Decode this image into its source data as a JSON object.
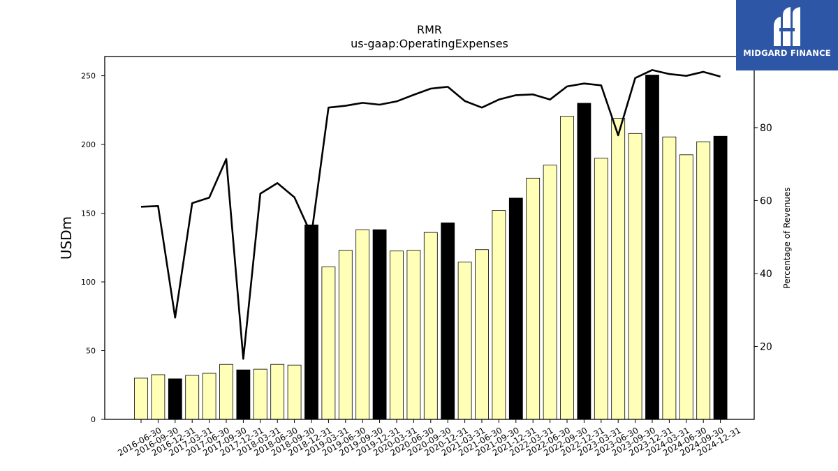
{
  "title": "RMR",
  "subtitle": "us-gaap:OperatingExpenses",
  "brand": {
    "name": "MIDGARD FINANCE",
    "color": "#2d56a6"
  },
  "chart_data": {
    "type": "bar",
    "title": "RMR",
    "subtitle": "us-gaap:OperatingExpenses",
    "ylabel": "USDm",
    "y2label": "Percentage of Revenues",
    "ylim": [
      0,
      264
    ],
    "y2lim": [
      0,
      99.5
    ],
    "yticks": [
      0,
      50,
      100,
      150,
      200,
      250
    ],
    "y2ticks": [
      20,
      40,
      60,
      80
    ],
    "bar_colors": {
      "quarter": "#ffffb8",
      "year_end": "#000000"
    },
    "categories": [
      "2016-06-30",
      "2016-09-30",
      "2016-12-31",
      "2017-03-31",
      "2017-06-30",
      "2017-09-30",
      "2017-12-31",
      "2018-03-31",
      "2018-06-30",
      "2018-09-30",
      "2018-12-31",
      "2019-03-31",
      "2019-06-30",
      "2019-09-30",
      "2019-12-31",
      "2020-03-31",
      "2020-06-30",
      "2020-09-30",
      "2020-12-31",
      "2021-03-31",
      "2021-06-30",
      "2021-09-30",
      "2021-12-31",
      "2022-03-31",
      "2022-06-30",
      "2022-09-30",
      "2022-12-31",
      "2023-03-31",
      "2023-06-30",
      "2023-09-30",
      "2023-12-31",
      "2024-03-31",
      "2024-06-30",
      "2024-09-30",
      "2024-12-31"
    ],
    "series": [
      {
        "type": "bar",
        "axis": "left",
        "values": [
          30,
          32.5,
          29.5,
          32,
          33.5,
          40,
          36,
          36.5,
          40,
          39.5,
          141.5,
          111,
          123,
          138,
          138,
          122.5,
          123,
          136,
          143,
          114.5,
          123.5,
          152,
          161,
          175.5,
          185,
          220.5,
          230,
          190,
          219,
          208,
          250.5,
          205.5,
          192.5,
          202,
          206
        ],
        "year_end": [
          false,
          false,
          true,
          false,
          false,
          false,
          true,
          false,
          false,
          false,
          true,
          false,
          false,
          false,
          true,
          false,
          false,
          false,
          true,
          false,
          false,
          false,
          true,
          false,
          false,
          false,
          true,
          false,
          false,
          false,
          true,
          false,
          false,
          false,
          true
        ]
      },
      {
        "type": "line",
        "axis": "right",
        "color": "#000000",
        "values": [
          58.3,
          58.5,
          27.9,
          59.3,
          60.8,
          71.4,
          16.6,
          61.9,
          64.8,
          60.9,
          50.6,
          85.5,
          86.0,
          86.8,
          86.3,
          87.2,
          89.0,
          90.7,
          91.2,
          87.3,
          85.5,
          87.7,
          88.9,
          89.1,
          87.7,
          91.3,
          92.1,
          91.6,
          77.9,
          93.6,
          95.8,
          94.7,
          94.2,
          95.3,
          94.0
        ]
      }
    ]
  }
}
